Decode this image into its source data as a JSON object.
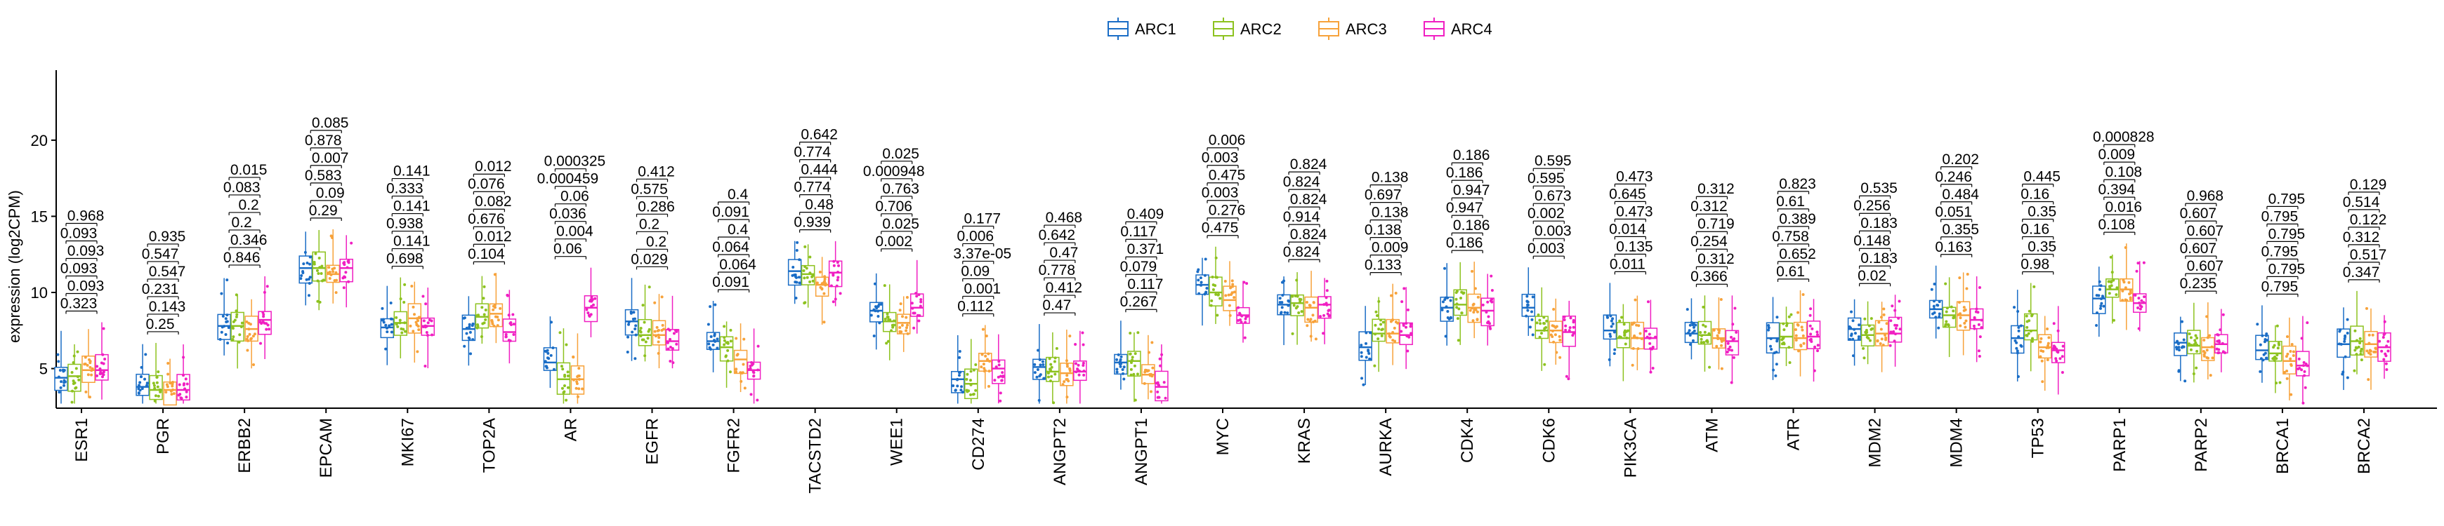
{
  "chart_data": {
    "type": "boxplot",
    "title": "",
    "xlabel": "",
    "ylabel": "expression (log2CPM)",
    "ylim": [
      2.4,
      24.6
    ],
    "yticks": [
      "5",
      "10",
      "15",
      "20"
    ],
    "grid": false,
    "legend_position": "top-center",
    "series": [
      {
        "name": "ARC1",
        "color": "#1A6DC6"
      },
      {
        "name": "ARC2",
        "color": "#8DC21F"
      },
      {
        "name": "ARC3",
        "color": "#F7A23A"
      },
      {
        "name": "ARC4",
        "color": "#F01FC2"
      }
    ],
    "genes": [
      {
        "name": "ESR1",
        "medians": [
          4.4,
          4.5,
          4.9,
          4.9
        ],
        "pvals": [
          "0.323",
          "0.093",
          "0.093",
          "0.093",
          "0.093",
          "0.968"
        ]
      },
      {
        "name": "PGR",
        "medians": [
          3.8,
          3.6,
          3.6,
          3.6
        ],
        "pvals": [
          "0.25",
          "0.143",
          "0.231",
          "0.547",
          "0.547",
          "0.935"
        ]
      },
      {
        "name": "ERBB2",
        "medians": [
          7.8,
          7.8,
          7.6,
          8.2
        ],
        "pvals": [
          "0.846",
          "0.346",
          "0.2",
          "0.2",
          "0.083",
          "0.015"
        ]
      },
      {
        "name": "EPCAM",
        "medians": [
          11.6,
          11.6,
          11.2,
          11.6
        ],
        "pvals": [
          "0.29",
          "0.09",
          "0.583",
          "0.007",
          "0.878",
          "0.085"
        ]
      },
      {
        "name": "MKI67",
        "medians": [
          7.7,
          8.0,
          8.3,
          7.8
        ],
        "pvals": [
          "0.698",
          "0.141",
          "0.938",
          "0.141",
          "0.333",
          "0.141"
        ]
      },
      {
        "name": "TOP2A",
        "medians": [
          7.6,
          8.4,
          8.6,
          7.4
        ],
        "pvals": [
          "0.104",
          "0.012",
          "0.676",
          "0.082",
          "0.076",
          "0.012"
        ]
      },
      {
        "name": "AR",
        "medians": [
          5.4,
          4.3,
          4.3,
          9.0
        ],
        "pvals": [
          "0.06",
          "0.004",
          "0.036",
          "0.06",
          "0.000459",
          "0.000325"
        ]
      },
      {
        "name": "EGFR",
        "medians": [
          8.1,
          7.2,
          7.2,
          6.8
        ],
        "pvals": [
          "0.029",
          "0.2",
          "0.2",
          "0.286",
          "0.575",
          "0.412"
        ]
      },
      {
        "name": "FGFR2",
        "medians": [
          6.8,
          6.4,
          5.6,
          4.9
        ],
        "pvals": [
          "0.091",
          "0.064",
          "0.064",
          "0.4",
          "0.091",
          "0.4"
        ]
      },
      {
        "name": "TACSTD2",
        "medians": [
          11.4,
          11.2,
          10.5,
          11.3
        ],
        "pvals": [
          "0.939",
          "0.48",
          "0.774",
          "0.444",
          "0.774",
          "0.642"
        ]
      },
      {
        "name": "WEE1",
        "medians": [
          8.8,
          8.1,
          8.0,
          9.0
        ],
        "pvals": [
          "0.002",
          "0.025",
          "0.706",
          "0.763",
          "0.000948",
          "0.025"
        ]
      },
      {
        "name": "CD274",
        "medians": [
          4.3,
          4.0,
          5.5,
          5.0
        ],
        "pvals": [
          "0.112",
          "0.001",
          "0.09",
          "3.37e-05",
          "0.006",
          "0.177"
        ]
      },
      {
        "name": "ANGPT2",
        "medians": [
          5.1,
          4.8,
          4.7,
          4.8
        ],
        "pvals": [
          "0.47",
          "0.412",
          "0.778",
          "0.47",
          "0.642",
          "0.468"
        ]
      },
      {
        "name": "ANGPT1",
        "medians": [
          5.4,
          5.5,
          4.6,
          3.8
        ],
        "pvals": [
          "0.267",
          "0.117",
          "0.079",
          "0.371",
          "0.117",
          "0.409"
        ]
      },
      {
        "name": "MYC",
        "medians": [
          10.5,
          10.0,
          9.5,
          8.5
        ],
        "pvals": [
          "0.475",
          "0.276",
          "0.003",
          "0.475",
          "0.003",
          "0.006"
        ]
      },
      {
        "name": "KRAS",
        "medians": [
          9.2,
          9.3,
          9.0,
          9.2
        ],
        "pvals": [
          "0.824",
          "0.824",
          "0.914",
          "0.824",
          "0.824",
          "0.824"
        ]
      },
      {
        "name": "AURKA",
        "medians": [
          6.4,
          7.3,
          7.3,
          7.2
        ],
        "pvals": [
          "0.133",
          "0.009",
          "0.138",
          "0.138",
          "0.697",
          "0.138"
        ]
      },
      {
        "name": "CDK4",
        "medians": [
          9.0,
          9.2,
          9.0,
          8.8
        ],
        "pvals": [
          "0.186",
          "0.186",
          "0.947",
          "0.947",
          "0.186",
          "0.186"
        ]
      },
      {
        "name": "CDK6",
        "medians": [
          9.0,
          7.5,
          7.5,
          7.4
        ],
        "pvals": [
          "0.003",
          "0.003",
          "0.002",
          "0.673",
          "0.595",
          "0.595"
        ]
      },
      {
        "name": "PIK3CA",
        "medians": [
          7.5,
          7.0,
          7.0,
          7.0
        ],
        "pvals": [
          "0.011",
          "0.135",
          "0.014",
          "0.473",
          "0.645",
          "0.473"
        ]
      },
      {
        "name": "ATM",
        "medians": [
          7.3,
          7.2,
          7.0,
          6.8
        ],
        "pvals": [
          "0.366",
          "0.312",
          "0.254",
          "0.719",
          "0.312",
          "0.312"
        ]
      },
      {
        "name": "ATR",
        "medians": [
          7.0,
          7.1,
          7.0,
          7.1
        ],
        "pvals": [
          "0.61",
          "0.652",
          "0.758",
          "0.389",
          "0.61",
          "0.823"
        ]
      },
      {
        "name": "MDM2",
        "medians": [
          7.6,
          7.2,
          7.3,
          7.3
        ],
        "pvals": [
          "0.02",
          "0.183",
          "0.148",
          "0.183",
          "0.256",
          "0.535"
        ]
      },
      {
        "name": "MDM4",
        "medians": [
          8.9,
          8.5,
          8.5,
          8.2
        ],
        "pvals": [
          "0.163",
          "0.355",
          "0.051",
          "0.484",
          "0.246",
          "0.202"
        ]
      },
      {
        "name": "TP53",
        "medians": [
          7.0,
          7.5,
          6.4,
          6.2
        ],
        "pvals": [
          "0.98",
          "0.35",
          "0.16",
          "0.35",
          "0.16",
          "0.445"
        ]
      },
      {
        "name": "PARP1",
        "medians": [
          9.6,
          10.2,
          10.2,
          9.3
        ],
        "pvals": [
          "0.108",
          "0.016",
          "0.394",
          "0.108",
          "0.009",
          "0.000828"
        ]
      },
      {
        "name": "PARP2",
        "medians": [
          6.7,
          6.5,
          6.4,
          6.6
        ],
        "pvals": [
          "0.235",
          "0.607",
          "0.607",
          "0.607",
          "0.607",
          "0.968"
        ]
      },
      {
        "name": "BRCA1",
        "medians": [
          6.2,
          6.0,
          5.5,
          5.2
        ],
        "pvals": [
          "0.795",
          "0.795",
          "0.795",
          "0.795",
          "0.795",
          "0.795"
        ]
      },
      {
        "name": "BRCA2",
        "medians": [
          6.6,
          6.8,
          6.6,
          6.4
        ],
        "pvals": [
          "0.347",
          "0.517",
          "0.312",
          "0.122",
          "0.514",
          "0.129"
        ]
      }
    ]
  }
}
